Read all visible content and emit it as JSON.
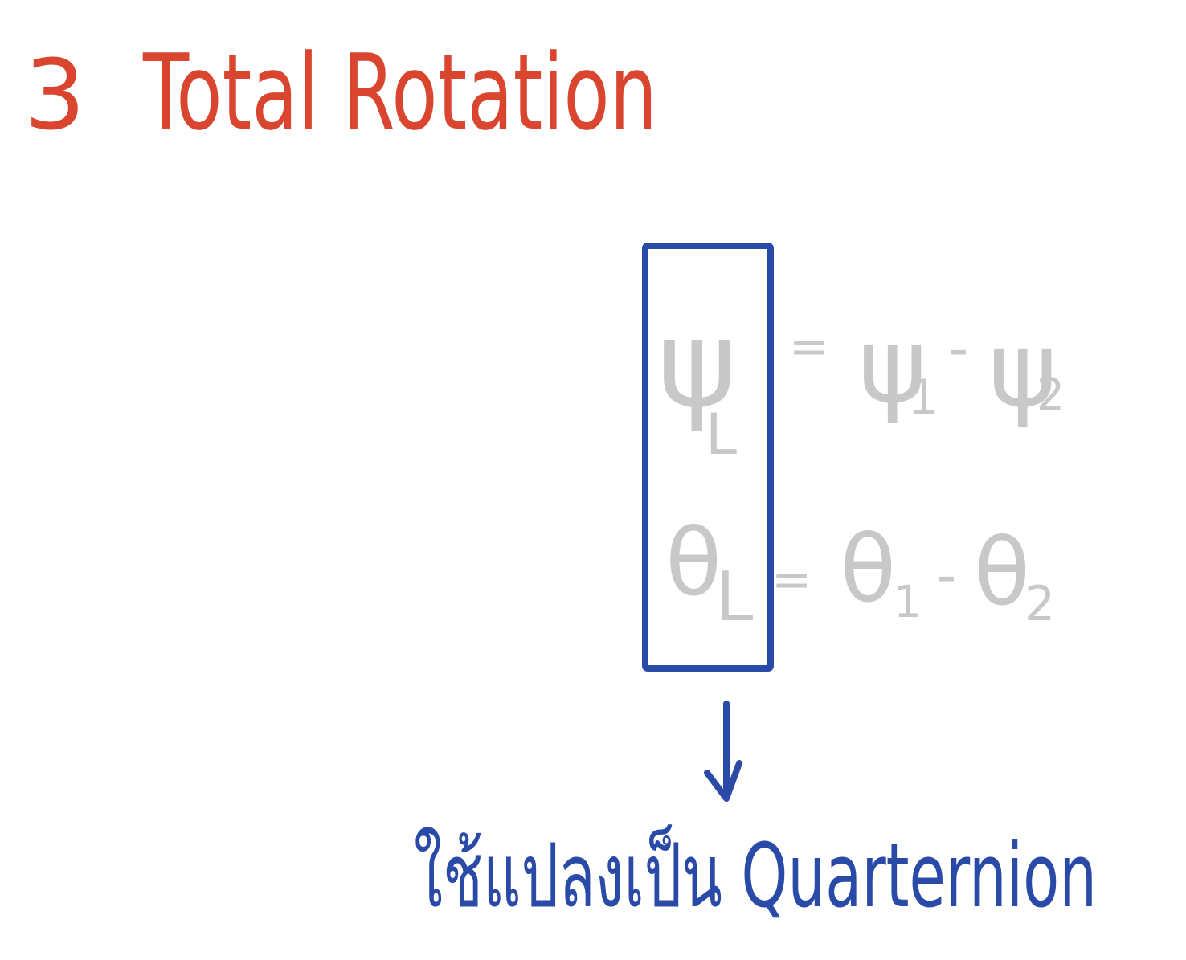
{
  "heading": {
    "number": "3",
    "title": "Total Rotation",
    "color": "#d9452f"
  },
  "equations": {
    "color": "#c8c8c8",
    "psi": {
      "lhs_symbol": "ψ",
      "lhs_subscript": "L",
      "equals": "=",
      "term1_symbol": "ψ",
      "term1_subscript": "1",
      "minus": "-",
      "term2_symbol": "ψ",
      "term2_subscript": "2"
    },
    "theta": {
      "lhs_symbol": "θ",
      "lhs_subscript": "L",
      "equals": "=",
      "term1_symbol": "θ",
      "term1_subscript": "1",
      "minus": "-",
      "term2_symbol": "θ",
      "term2_subscript": "2"
    }
  },
  "annotation": {
    "color": "#2a4aa8",
    "text": "ใช้แปลงเป็น Quarternion"
  }
}
